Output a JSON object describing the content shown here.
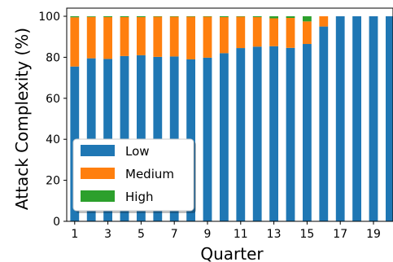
{
  "chart_data": {
    "type": "bar",
    "stacked": true,
    "title": "",
    "xlabel": "Quarter",
    "ylabel": "Attack Complexity (%)",
    "ylim": [
      0,
      100
    ],
    "yticks": [
      0,
      20,
      40,
      60,
      80,
      100
    ],
    "categories": [
      "1",
      "2",
      "3",
      "4",
      "5",
      "6",
      "7",
      "8",
      "9",
      "10",
      "11",
      "12",
      "13",
      "14",
      "15",
      "16",
      "17",
      "18",
      "19",
      "20"
    ],
    "xtick_labels": [
      "1",
      "3",
      "5",
      "7",
      "9",
      "11",
      "13",
      "15",
      "17",
      "19"
    ],
    "series": [
      {
        "name": "Low",
        "color": "#1f77b4",
        "values": [
          75.5,
          79.5,
          79.2,
          80.6,
          81.0,
          80.2,
          80.4,
          79.0,
          79.8,
          82.0,
          84.5,
          85.2,
          85.4,
          84.6,
          86.5,
          95.0,
          100,
          100,
          100,
          100
        ]
      },
      {
        "name": "Medium",
        "color": "#ff7f0e",
        "values": [
          24.0,
          20.2,
          20.4,
          19.0,
          18.6,
          19.6,
          19.4,
          20.8,
          20.0,
          17.6,
          15.3,
          14.4,
          13.6,
          14.6,
          11.0,
          5.0,
          0,
          0,
          0,
          0
        ]
      },
      {
        "name": "High",
        "color": "#2ca02c",
        "values": [
          0.5,
          0.3,
          0.4,
          0.4,
          0.4,
          0.2,
          0.2,
          0.2,
          0.2,
          0.4,
          0.2,
          0.4,
          1.0,
          0.8,
          2.5,
          0,
          0,
          0,
          0,
          0
        ]
      }
    ],
    "legend": {
      "placement": "lower-left",
      "entries": [
        "Low",
        "Medium",
        "High"
      ]
    },
    "grid": false
  }
}
